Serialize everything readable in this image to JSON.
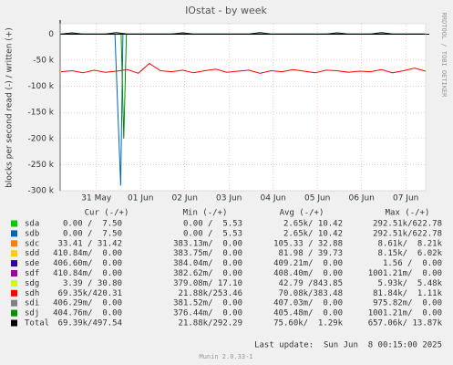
{
  "chart_data": {
    "type": "line",
    "title": "IOstat - by week",
    "y_label": "blocks per second read (-) / written (+)",
    "watermark": "RRDTOOL / TOBI OETIKER",
    "xlim": [
      -0.82,
      7.45
    ],
    "xticks": [
      {
        "value": 0,
        "label": "31 May"
      },
      {
        "value": 1,
        "label": "01 Jun"
      },
      {
        "value": 2,
        "label": "02 Jun"
      },
      {
        "value": 3,
        "label": "03 Jun"
      },
      {
        "value": 4,
        "label": "04 Jun"
      },
      {
        "value": 5,
        "label": "05 Jun"
      },
      {
        "value": 6,
        "label": "06 Jun"
      },
      {
        "value": 7,
        "label": "07 Jun"
      }
    ],
    "ylim": [
      -300000,
      20000
    ],
    "yticks": [
      0,
      {
        "value": -50000,
        "label": "-50 k"
      },
      {
        "value": -100000,
        "label": "-100 k"
      },
      {
        "value": -150000,
        "label": "-150 k"
      },
      {
        "value": -200000,
        "label": "-200 k"
      },
      {
        "value": -250000,
        "label": "-250 k"
      },
      {
        "value": -300000,
        "label": "-300 k"
      }
    ],
    "grid": true,
    "x": [
      -0.8,
      -0.55,
      -0.3,
      -0.05,
      0.2,
      0.45,
      0.7,
      0.95,
      1.2,
      1.45,
      1.7,
      1.95,
      2.2,
      2.45,
      2.7,
      2.95,
      3.2,
      3.45,
      3.7,
      3.95,
      4.2,
      4.45,
      4.7,
      4.95,
      5.2,
      5.45,
      5.7,
      5.95,
      6.2,
      6.45,
      6.7,
      6.95,
      7.2,
      7.45
    ],
    "series": [
      {
        "color": "#ff0000",
        "values": [
          -72000,
          -70000,
          -74000,
          -69000,
          -73000,
          -71000,
          -68000,
          -75000,
          -56000,
          -70000,
          -72000,
          -69000,
          -74000,
          -70000,
          -67000,
          -73000,
          -71000,
          -69000,
          -75000,
          -70000,
          -72000,
          -68000,
          -71000,
          -74000,
          -69000,
          -70000,
          -73000,
          -71000,
          -72000,
          -68000,
          -74000,
          -70000,
          -65000,
          -71000
        ]
      },
      {
        "color": "#000000",
        "values": [
          300,
          2500,
          300,
          300,
          300,
          3000,
          300,
          300,
          300,
          300,
          300,
          2500,
          300,
          300,
          300,
          300,
          300,
          300,
          2800,
          300,
          300,
          300,
          300,
          300,
          300,
          2500,
          300,
          300,
          300,
          3000,
          300,
          300,
          300,
          300
        ]
      },
      {
        "color": "#0066b3",
        "x": [
          -0.8,
          0.42,
          0.55,
          0.6,
          7.45
        ],
        "values": [
          0,
          0,
          -290000,
          0,
          0
        ]
      },
      {
        "color": "#008f00",
        "x": [
          -0.8,
          0.56,
          0.62,
          0.68,
          7.45
        ],
        "values": [
          0,
          0,
          -200000,
          0,
          0
        ]
      }
    ],
    "legend": {
      "header": [
        "Cur (-/+)",
        "Min (-/+)",
        "Avg (-/+)",
        "Max (-/+)"
      ],
      "rows": [
        {
          "name": "sda",
          "color": "#00cc00",
          "cur": "0.00 /  7.50",
          "min": "0.00 /  5.53",
          "avg": "2.65k/ 10.42",
          "max": "292.51k/622.78"
        },
        {
          "name": "sdb",
          "color": "#0066b3",
          "cur": "0.00 /  7.50",
          "min": "0.00 /  5.53",
          "avg": "2.65k/ 10.42",
          "max": "292.51k/622.78"
        },
        {
          "name": "sdc",
          "color": "#ff8000",
          "cur": "33.41 / 31.42",
          "min": "383.13m/  0.00",
          "avg": "105.33 / 32.88",
          "max": "8.61k/  8.21k"
        },
        {
          "name": "sdd",
          "color": "#ffcc00",
          "cur": "410.84m/  0.00",
          "min": "383.75m/  0.00",
          "avg": "81.98 / 39.73",
          "max": "8.15k/  6.02k"
        },
        {
          "name": "sde",
          "color": "#330099",
          "cur": "406.60m/  0.00",
          "min": "384.04m/  0.00",
          "avg": "409.21m/  0.00",
          "max": "1.56 /  0.00"
        },
        {
          "name": "sdf",
          "color": "#990099",
          "cur": "410.84m/  0.00",
          "min": "382.62m/  0.00",
          "avg": "408.40m/  0.00",
          "max": "1001.21m/  0.00"
        },
        {
          "name": "sdg",
          "color": "#ccff00",
          "cur": "3.39 / 30.80",
          "min": "379.08m/ 17.10",
          "avg": "42.79 /843.85",
          "max": "5.93k/  5.48k"
        },
        {
          "name": "sdh",
          "color": "#ff0000",
          "cur": "69.35k/420.31",
          "min": "21.88k/253.46",
          "avg": "70.08k/383.48",
          "max": "81.84k/  1.11k"
        },
        {
          "name": "sdi",
          "color": "#808080",
          "cur": "406.29m/  0.00",
          "min": "381.52m/  0.00",
          "avg": "407.03m/  0.00",
          "max": "975.82m/  0.00"
        },
        {
          "name": "sdj",
          "color": "#008f00",
          "cur": "404.76m/  0.00",
          "min": "376.44m/  0.00",
          "avg": "405.48m/  0.00",
          "max": "1001.21m/  0.00"
        },
        {
          "name": "Total",
          "color": "#000000",
          "cur": "69.39k/497.54",
          "min": "21.88k/292.29",
          "avg": "75.60k/  1.29k",
          "max": "657.06k/ 13.87k"
        }
      ]
    },
    "last_update": "Last update:  Sun Jun  8 00:15:00 2025",
    "footer": "Munin 2.0.33-1"
  }
}
